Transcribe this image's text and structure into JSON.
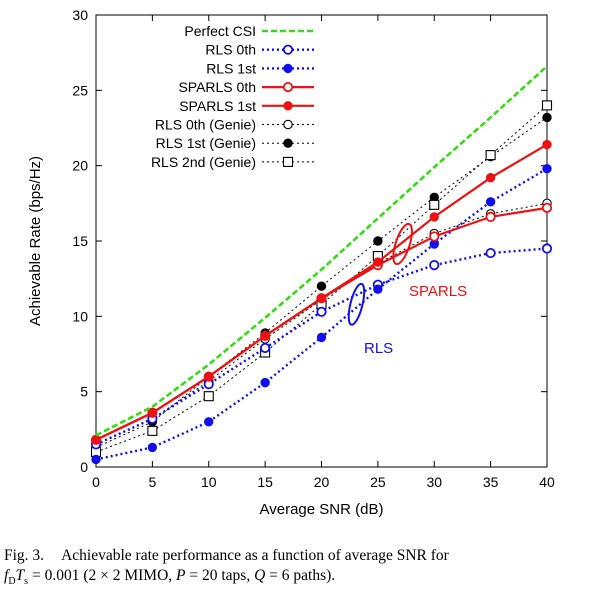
{
  "chart_data": {
    "type": "line",
    "xlabel": "Average SNR (dB)",
    "ylabel": "Achievable Rate (bps/Hz)",
    "xlim": [
      0,
      40
    ],
    "ylim": [
      0,
      30
    ],
    "xticks": [
      "0",
      "5",
      "10",
      "15",
      "20",
      "25",
      "30",
      "35",
      "40"
    ],
    "yticks": [
      "0",
      "5",
      "10",
      "15",
      "20",
      "25",
      "30"
    ],
    "x": [
      0,
      5,
      10,
      15,
      20,
      25,
      30,
      35,
      40
    ],
    "grid": false,
    "legend_position": "top-left",
    "series": [
      {
        "name": "Perfect CSI",
        "color": "#33dd11",
        "style": "dashed",
        "marker": "none",
        "values": [
          2.1,
          4.0,
          6.8,
          9.9,
          13.1,
          16.5,
          19.9,
          23.2,
          26.6
        ]
      },
      {
        "name": "RLS 0th",
        "color": "#1010ee",
        "style": "dotted",
        "marker": "open-circle",
        "values": [
          1.5,
          3.2,
          5.5,
          7.9,
          10.3,
          12.1,
          13.4,
          14.2,
          14.5
        ]
      },
      {
        "name": "RLS 1st",
        "color": "#1010ee",
        "style": "dotted",
        "marker": "filled-circle",
        "values": [
          0.5,
          1.3,
          3.0,
          5.6,
          8.6,
          11.8,
          14.8,
          17.6,
          19.8
        ]
      },
      {
        "name": "SPARLS 0th",
        "color": "#ee1111",
        "style": "solid",
        "marker": "open-circle",
        "values": [
          1.8,
          3.6,
          6.0,
          8.7,
          11.2,
          13.4,
          15.3,
          16.6,
          17.2
        ]
      },
      {
        "name": "SPARLS 1st",
        "color": "#ee1111",
        "style": "solid",
        "marker": "filled-circle",
        "values": [
          1.8,
          3.6,
          6.0,
          8.7,
          11.2,
          13.6,
          16.6,
          19.2,
          21.4
        ]
      },
      {
        "name": "RLS 0th (Genie)",
        "color": "#000000",
        "style": "dotted",
        "marker": "open-circle",
        "values": [
          1.5,
          3.2,
          5.7,
          8.5,
          11.1,
          13.5,
          15.5,
          16.8,
          17.5
        ]
      },
      {
        "name": "RLS 1st (Genie)",
        "color": "#000000",
        "style": "dotted",
        "marker": "filled-circle",
        "values": [
          1.3,
          3.0,
          6.0,
          8.9,
          12.0,
          15.0,
          17.9,
          20.6,
          23.2
        ]
      },
      {
        "name": "RLS 2nd (Genie)",
        "color": "#000000",
        "style": "dotted",
        "marker": "open-square",
        "values": [
          1.0,
          2.4,
          4.7,
          7.6,
          10.8,
          14.0,
          17.4,
          20.7,
          24.0
        ]
      }
    ],
    "annotations": [
      {
        "text": "SPARLS",
        "color": "#ee1111"
      },
      {
        "text": "RLS",
        "color": "#1010ee"
      }
    ]
  },
  "caption": {
    "fig_label": "Fig. 3.",
    "line1_text": "Achievable rate performance as a function of average SNR for",
    "line2_text": "f_D T_s = 0.001 (2 × 2 MIMO, P = 20 taps, Q = 6 paths)."
  }
}
